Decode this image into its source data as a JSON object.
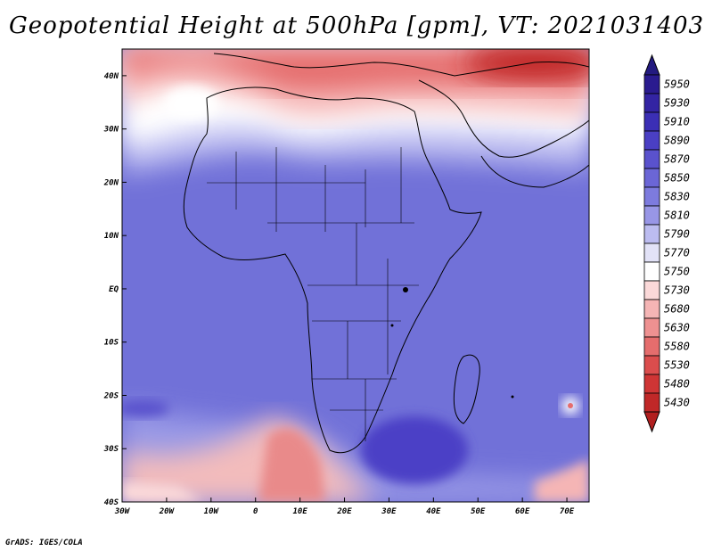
{
  "title": "Geopotential Height at 500hPa [gpm], VT: 2021031403",
  "credit": "GrADS: IGES/COLA",
  "map": {
    "lon_range": [
      -30,
      75
    ],
    "lat_range": [
      -40,
      45
    ],
    "lat_ticks": [
      {
        "value": 40,
        "label": "40N"
      },
      {
        "value": 30,
        "label": "30N"
      },
      {
        "value": 20,
        "label": "20N"
      },
      {
        "value": 10,
        "label": "10N"
      },
      {
        "value": 0,
        "label": "EQ"
      },
      {
        "value": -10,
        "label": "10S"
      },
      {
        "value": -20,
        "label": "20S"
      },
      {
        "value": -30,
        "label": "30S"
      },
      {
        "value": -40,
        "label": "40S"
      }
    ],
    "lon_ticks": [
      {
        "value": -30,
        "label": "30W"
      },
      {
        "value": -20,
        "label": "20W"
      },
      {
        "value": -10,
        "label": "10W"
      },
      {
        "value": 0,
        "label": "0"
      },
      {
        "value": 10,
        "label": "10E"
      },
      {
        "value": 20,
        "label": "20E"
      },
      {
        "value": 30,
        "label": "30E"
      },
      {
        "value": 40,
        "label": "40E"
      },
      {
        "value": 50,
        "label": "50E"
      },
      {
        "value": 60,
        "label": "60E"
      },
      {
        "value": 70,
        "label": "70E"
      }
    ]
  },
  "colorbar": {
    "levels": [
      {
        "label": "5950",
        "color": "#2a1b8f"
      },
      {
        "label": "5930",
        "color": "#3324a3"
      },
      {
        "label": "5910",
        "color": "#3b2fb5"
      },
      {
        "label": "5890",
        "color": "#4a3fc4"
      },
      {
        "label": "5870",
        "color": "#5a52cd"
      },
      {
        "label": "5850",
        "color": "#6b66d6"
      },
      {
        "label": "5830",
        "color": "#7d7bde"
      },
      {
        "label": "5810",
        "color": "#9896e6"
      },
      {
        "label": "5790",
        "color": "#bcbcf0"
      },
      {
        "label": "5770",
        "color": "#e2e2f7"
      },
      {
        "label": "5750",
        "color": "#ffffff"
      },
      {
        "label": "5730",
        "color": "#fbd9d9"
      },
      {
        "label": "5680",
        "color": "#f5b5b5"
      },
      {
        "label": "5630",
        "color": "#ee9191"
      },
      {
        "label": "5580",
        "color": "#e56d6d"
      },
      {
        "label": "5530",
        "color": "#db4d4d"
      },
      {
        "label": "5480",
        "color": "#cf3535"
      },
      {
        "label": "5430",
        "color": "#c02828"
      }
    ],
    "top_color": "#231a80",
    "bottom_color": "#b11f1f"
  }
}
